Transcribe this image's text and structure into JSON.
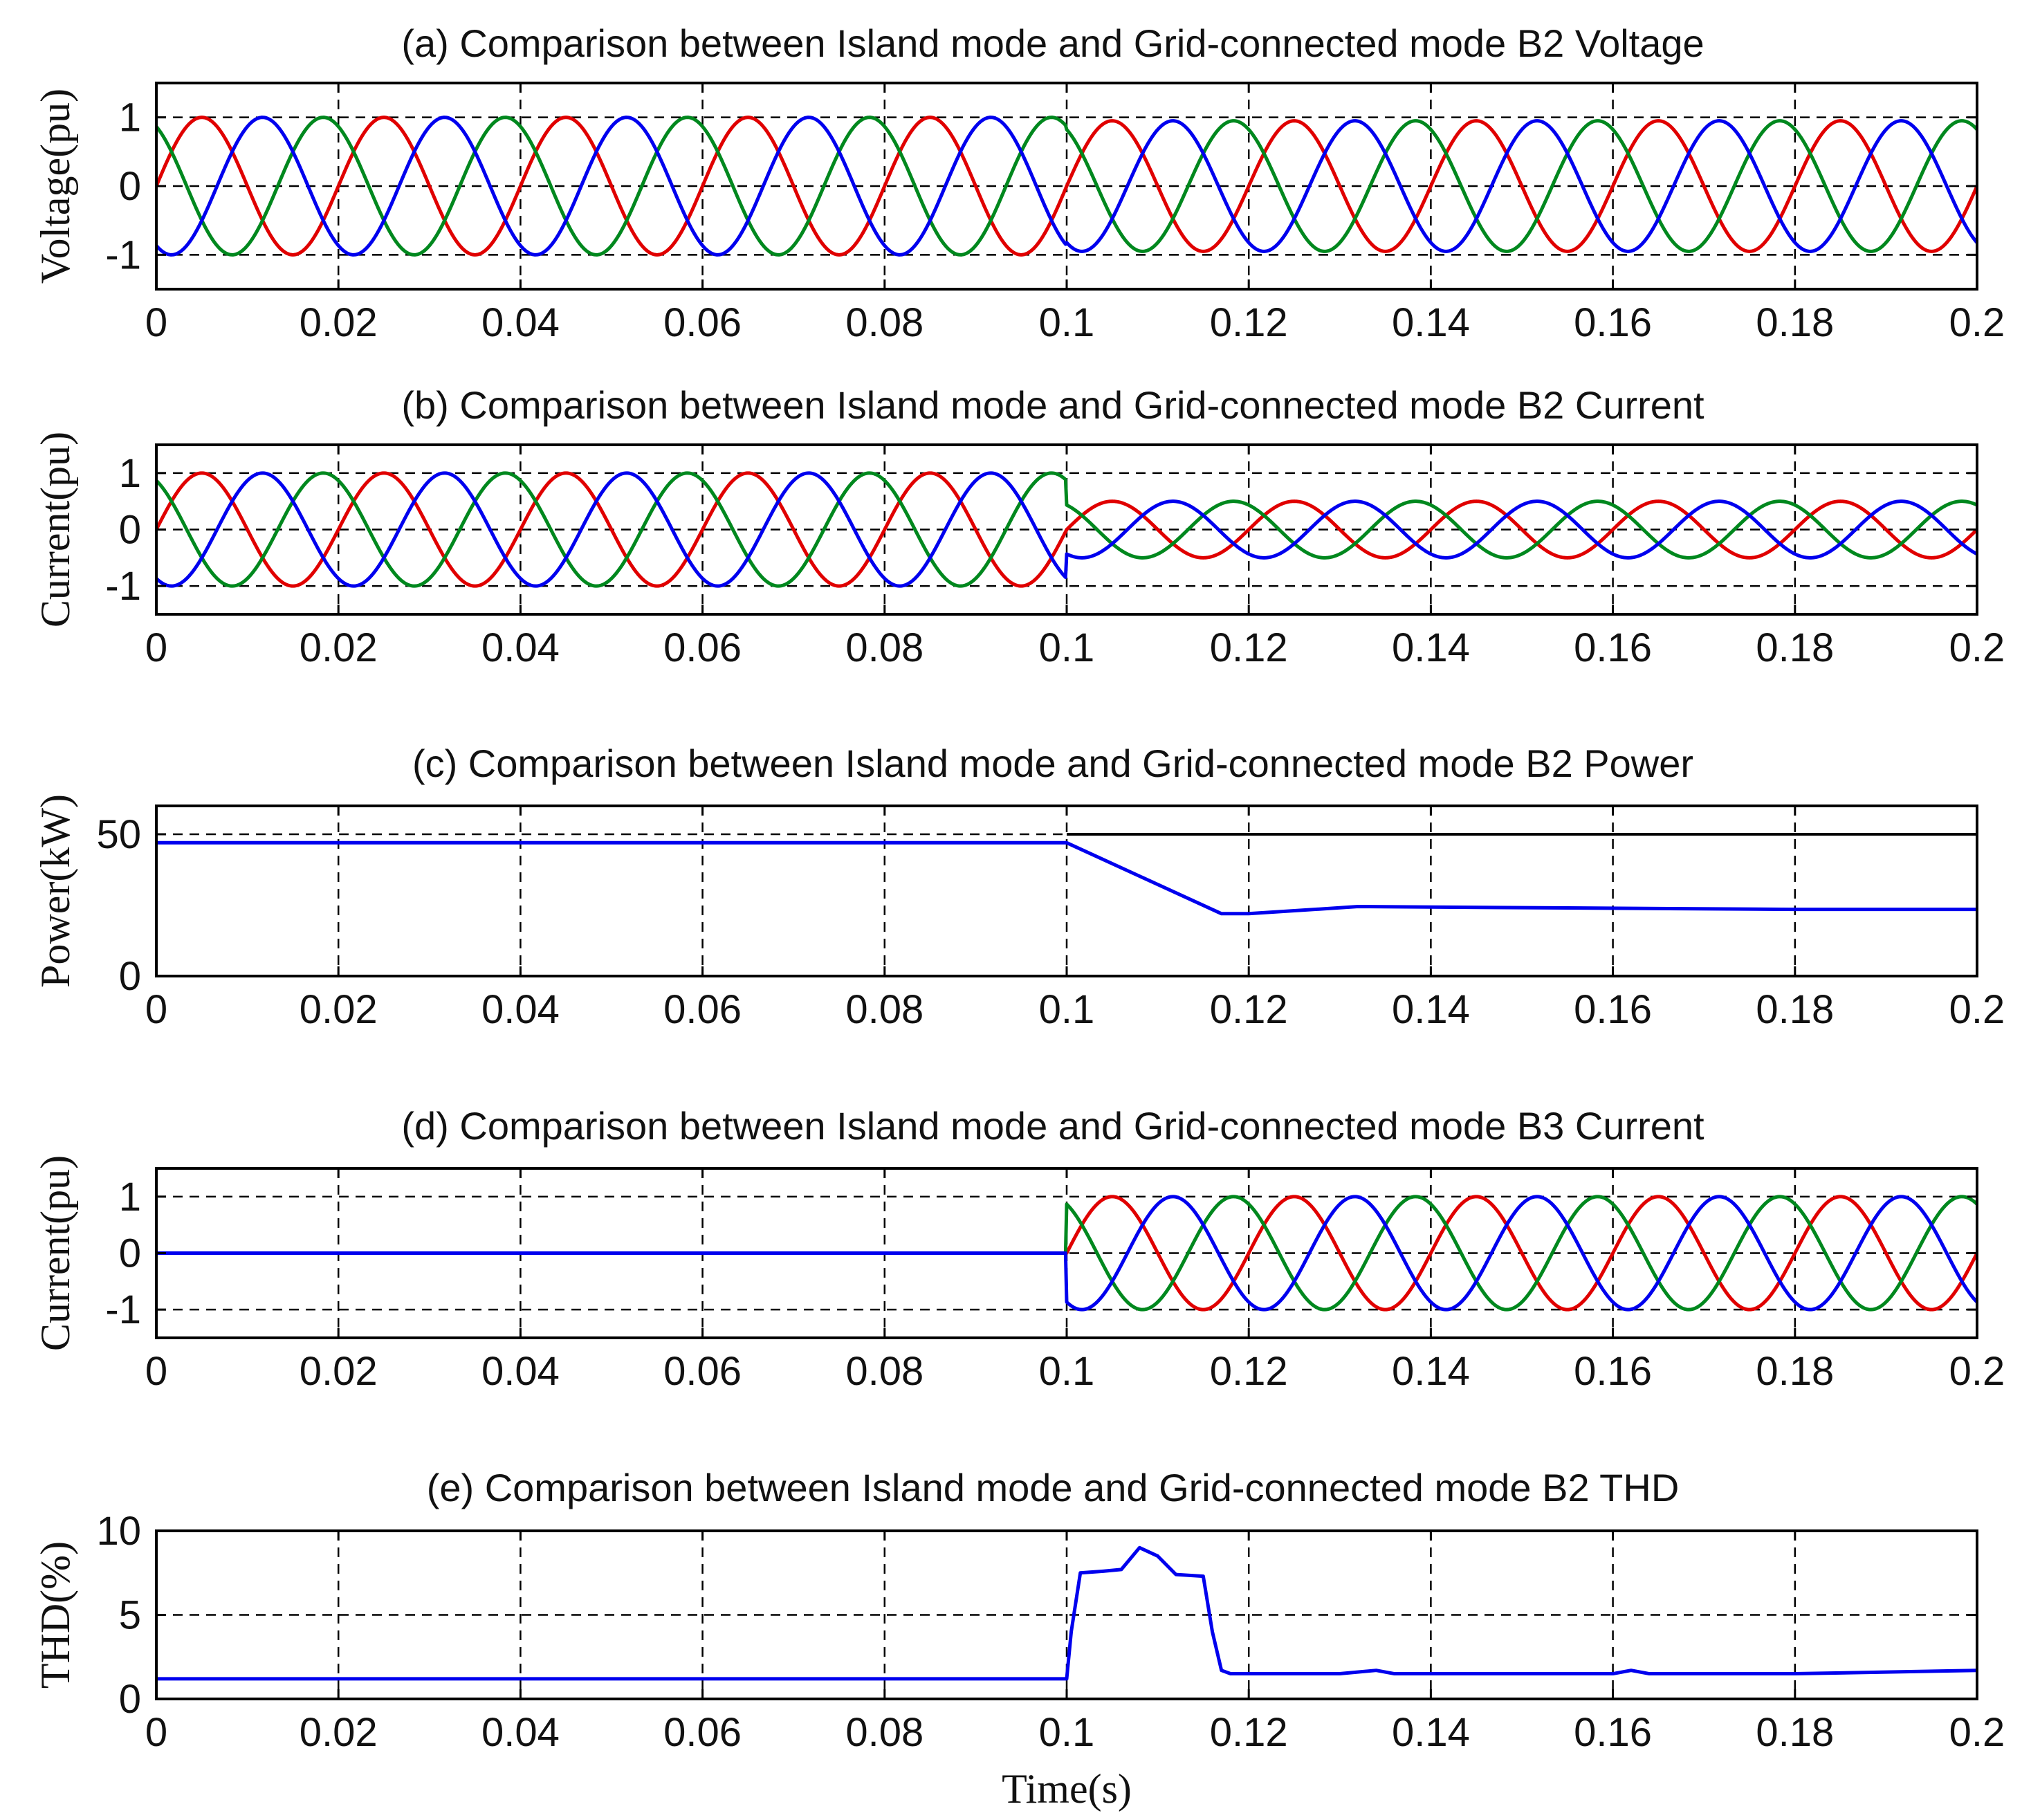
{
  "chart_data": [
    {
      "type": "line",
      "title": "(a)  Comparison between Island mode and Grid-connected mode B2 Voltage",
      "ylabel": "Voltage(pu)",
      "xlabel": "",
      "xlim": [
        0,
        0.2
      ],
      "ylim": [
        -1.5,
        1.5
      ],
      "xticks": [
        "0",
        "0.02",
        "0.04",
        "0.06",
        "0.08",
        "0.1",
        "0.12",
        "0.14",
        "0.16",
        "0.18",
        "0.2"
      ],
      "yticks": [
        {
          "v": 1,
          "label": "1"
        },
        {
          "v": 0,
          "label": "0"
        },
        {
          "v": -1,
          "label": "-1"
        }
      ],
      "grid": true,
      "series_colors": [
        "#e00000",
        "#00881e",
        "#0000ee"
      ],
      "waveform": {
        "kind": "three-phase",
        "freq_hz": 50,
        "phase_deg": [
          0,
          120,
          240
        ],
        "amplitude_segments": [
          [
            0,
            0.1,
            1.0
          ],
          [
            0.1,
            0.2,
            0.95
          ]
        ]
      }
    },
    {
      "type": "line",
      "title": "(b) Comparison between Island mode and Grid-connected mode B2 Current",
      "ylabel": "Current(pu)",
      "xlabel": "",
      "xlim": [
        0,
        0.2
      ],
      "ylim": [
        -1.5,
        1.5
      ],
      "xticks": [
        "0",
        "0.02",
        "0.04",
        "0.06",
        "0.08",
        "0.1",
        "0.12",
        "0.14",
        "0.16",
        "0.18",
        "0.2"
      ],
      "yticks": [
        {
          "v": 1,
          "label": "1"
        },
        {
          "v": 0,
          "label": "0"
        },
        {
          "v": -1,
          "label": "-1"
        }
      ],
      "grid": true,
      "series_colors": [
        "#e00000",
        "#00881e",
        "#0000ee"
      ],
      "waveform": {
        "kind": "three-phase",
        "freq_hz": 50,
        "phase_deg": [
          0,
          120,
          240
        ],
        "amplitude_segments": [
          [
            0,
            0.1,
            1.0
          ],
          [
            0.1,
            0.2,
            0.5
          ]
        ]
      }
    },
    {
      "type": "line",
      "title": "(c)  Comparison between Island mode and Grid-connected mode B2 Power",
      "ylabel": "Power(kW)",
      "xlabel": "",
      "xlim": [
        0,
        0.2
      ],
      "ylim": [
        0,
        60
      ],
      "xticks": [
        "0",
        "0.02",
        "0.04",
        "0.06",
        "0.08",
        "0.1",
        "0.12",
        "0.14",
        "0.16",
        "0.18",
        "0.2"
      ],
      "yticks": [
        {
          "v": 50,
          "label": "50"
        },
        {
          "v": 0,
          "label": "0"
        }
      ],
      "grid": true,
      "series": [
        {
          "color": "#0000ee",
          "x": [
            0,
            0.1,
            0.117,
            0.12,
            0.132,
            0.18,
            0.2
          ],
          "y": [
            47,
            47,
            22,
            22,
            24.5,
            23.5,
            23.5
          ]
        }
      ],
      "reference_line": {
        "y": 50,
        "x_from": 0.1,
        "x_to": 0.2,
        "color": "#000000"
      }
    },
    {
      "type": "line",
      "title": "(d)  Comparison between Island mode and Grid-connected mode B3 Current",
      "ylabel": "Current(pu)",
      "xlabel": "",
      "xlim": [
        0,
        0.2
      ],
      "ylim": [
        -1.5,
        1.5
      ],
      "xticks": [
        "0",
        "0.02",
        "0.04",
        "0.06",
        "0.08",
        "0.1",
        "0.12",
        "0.14",
        "0.16",
        "0.18",
        "0.2"
      ],
      "yticks": [
        {
          "v": 1,
          "label": "1"
        },
        {
          "v": 0,
          "label": "0"
        },
        {
          "v": -1,
          "label": "-1"
        }
      ],
      "grid": true,
      "series_colors": [
        "#e00000",
        "#00881e",
        "#0000ee"
      ],
      "waveform": {
        "kind": "three-phase",
        "freq_hz": 50,
        "phase_deg": [
          0,
          120,
          240
        ],
        "amplitude_segments": [
          [
            0,
            0.1,
            0.0
          ],
          [
            0.1,
            0.2,
            1.0
          ]
        ]
      }
    },
    {
      "type": "line",
      "title": "(e)  Comparison between Island mode and Grid-connected mode B2 THD",
      "ylabel": "THD(%)",
      "xlabel": "Time(s)",
      "xlim": [
        0,
        0.2
      ],
      "ylim": [
        0,
        10
      ],
      "xticks": [
        "0",
        "0.02",
        "0.04",
        "0.06",
        "0.08",
        "0.1",
        "0.12",
        "0.14",
        "0.16",
        "0.18",
        "0.2"
      ],
      "yticks": [
        {
          "v": 10,
          "label": "10"
        },
        {
          "v": 5,
          "label": "5"
        },
        {
          "v": 0,
          "label": "0"
        }
      ],
      "grid": true,
      "series": [
        {
          "color": "#0000ee",
          "x": [
            0,
            0.1,
            0.1005,
            0.1015,
            0.104,
            0.106,
            0.108,
            0.11,
            0.112,
            0.115,
            0.116,
            0.117,
            0.118,
            0.13,
            0.134,
            0.136,
            0.16,
            0.162,
            0.164,
            0.18,
            0.2
          ],
          "y": [
            1.2,
            1.2,
            4,
            7.5,
            7.6,
            7.7,
            9,
            8.5,
            7.4,
            7.3,
            4,
            1.7,
            1.5,
            1.5,
            1.7,
            1.5,
            1.5,
            1.7,
            1.5,
            1.5,
            1.7
          ]
        }
      ]
    }
  ]
}
